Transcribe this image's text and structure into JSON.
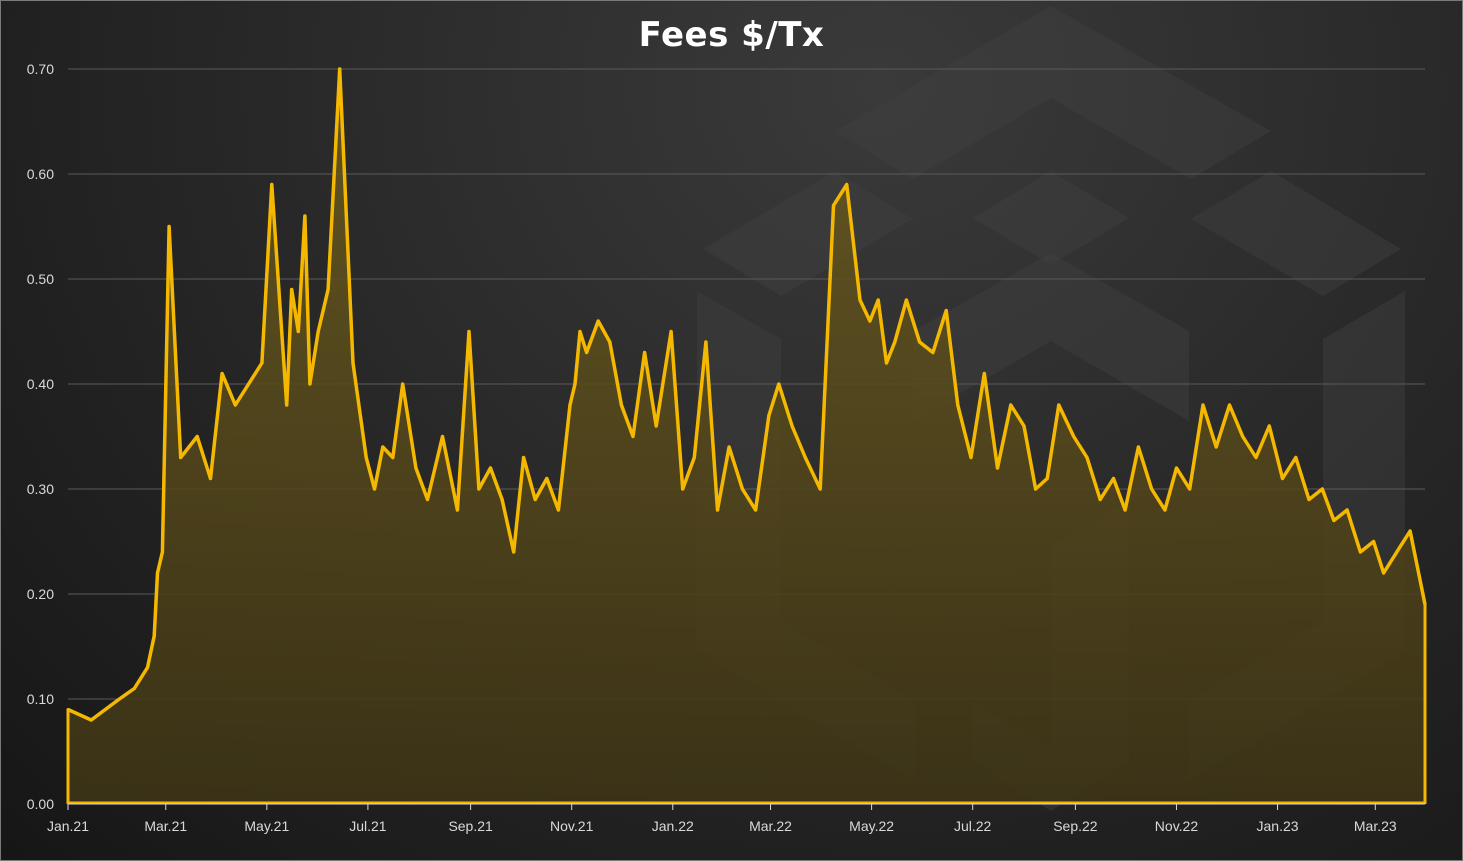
{
  "chart_data": {
    "type": "area",
    "title": "Fees $/Tx",
    "xlabel": "",
    "ylabel": "",
    "ylim": [
      0,
      0.7
    ],
    "y_ticks": [
      "0.00",
      "0.10",
      "0.20",
      "0.30",
      "0.40",
      "0.50",
      "0.60",
      "0.70"
    ],
    "x_ticks": [
      "Jan.21",
      "Mar.21",
      "May.21",
      "Jul.21",
      "Sep.21",
      "Nov.21",
      "Jan.22",
      "Mar.22",
      "May.22",
      "Jul.22",
      "Sep.22",
      "Nov.22",
      "Jan.23",
      "Mar.23"
    ],
    "xlim": [
      "2021-01-01",
      "2023-03-31"
    ],
    "grid": "horizontal",
    "series_color": "#f5b800",
    "series": [
      {
        "name": "",
        "x": [
          "2021-01-01",
          "2021-01-15",
          "2021-02-01",
          "2021-02-10",
          "2021-02-18",
          "2021-02-22",
          "2021-02-24",
          "2021-02-27",
          "2021-03-03",
          "2021-03-10",
          "2021-03-20",
          "2021-03-28",
          "2021-04-04",
          "2021-04-12",
          "2021-04-20",
          "2021-04-28",
          "2021-05-04",
          "2021-05-10",
          "2021-05-13",
          "2021-05-16",
          "2021-05-20",
          "2021-05-24",
          "2021-05-27",
          "2021-06-01",
          "2021-06-07",
          "2021-06-14",
          "2021-06-22",
          "2021-06-30",
          "2021-07-05",
          "2021-07-10",
          "2021-07-16",
          "2021-07-22",
          "2021-07-30",
          "2021-08-06",
          "2021-08-15",
          "2021-08-24",
          "2021-08-31",
          "2021-09-06",
          "2021-09-13",
          "2021-09-20",
          "2021-09-27",
          "2021-10-03",
          "2021-10-10",
          "2021-10-17",
          "2021-10-24",
          "2021-10-31",
          "2021-11-03",
          "2021-11-06",
          "2021-11-10",
          "2021-11-17",
          "2021-11-24",
          "2021-12-01",
          "2021-12-08",
          "2021-12-15",
          "2021-12-22",
          "2021-12-31",
          "2022-01-07",
          "2022-01-14",
          "2022-01-21",
          "2022-01-28",
          "2022-02-04",
          "2022-02-12",
          "2022-02-20",
          "2022-02-28",
          "2022-03-06",
          "2022-03-14",
          "2022-03-22",
          "2022-03-31",
          "2022-04-08",
          "2022-04-16",
          "2022-04-24",
          "2022-04-30",
          "2022-05-05",
          "2022-05-10",
          "2022-05-15",
          "2022-05-22",
          "2022-05-30",
          "2022-06-07",
          "2022-06-15",
          "2022-06-22",
          "2022-06-30",
          "2022-07-08",
          "2022-07-16",
          "2022-07-24",
          "2022-08-01",
          "2022-08-08",
          "2022-08-15",
          "2022-08-22",
          "2022-08-31",
          "2022-09-08",
          "2022-09-16",
          "2022-09-24",
          "2022-10-01",
          "2022-10-09",
          "2022-10-17",
          "2022-10-25",
          "2022-11-01",
          "2022-11-09",
          "2022-11-17",
          "2022-11-25",
          "2022-12-03",
          "2022-12-11",
          "2022-12-19",
          "2022-12-27",
          "2023-01-04",
          "2023-01-12",
          "2023-01-20",
          "2023-01-28",
          "2023-02-04",
          "2023-02-12",
          "2023-02-20",
          "2023-02-28",
          "2023-03-06",
          "2023-03-14",
          "2023-03-22",
          "2023-03-31"
        ],
        "values": [
          0.09,
          0.08,
          0.1,
          0.11,
          0.13,
          0.16,
          0.22,
          0.24,
          0.55,
          0.33,
          0.35,
          0.31,
          0.41,
          0.38,
          0.4,
          0.42,
          0.59,
          0.45,
          0.38,
          0.49,
          0.45,
          0.56,
          0.4,
          0.45,
          0.49,
          0.7,
          0.42,
          0.33,
          0.3,
          0.34,
          0.33,
          0.4,
          0.32,
          0.29,
          0.35,
          0.28,
          0.45,
          0.3,
          0.32,
          0.29,
          0.24,
          0.33,
          0.29,
          0.31,
          0.28,
          0.38,
          0.4,
          0.45,
          0.43,
          0.46,
          0.44,
          0.38,
          0.35,
          0.43,
          0.36,
          0.45,
          0.3,
          0.33,
          0.44,
          0.28,
          0.34,
          0.3,
          0.28,
          0.37,
          0.4,
          0.36,
          0.33,
          0.3,
          0.57,
          0.59,
          0.48,
          0.46,
          0.48,
          0.42,
          0.44,
          0.48,
          0.44,
          0.43,
          0.47,
          0.38,
          0.33,
          0.41,
          0.32,
          0.38,
          0.36,
          0.3,
          0.31,
          0.38,
          0.35,
          0.33,
          0.29,
          0.31,
          0.28,
          0.34,
          0.3,
          0.28,
          0.32,
          0.3,
          0.38,
          0.34,
          0.38,
          0.35,
          0.33,
          0.36,
          0.31,
          0.33,
          0.29,
          0.3,
          0.27,
          0.28,
          0.24,
          0.25,
          0.22,
          0.24,
          0.26,
          0.19
        ]
      }
    ]
  }
}
